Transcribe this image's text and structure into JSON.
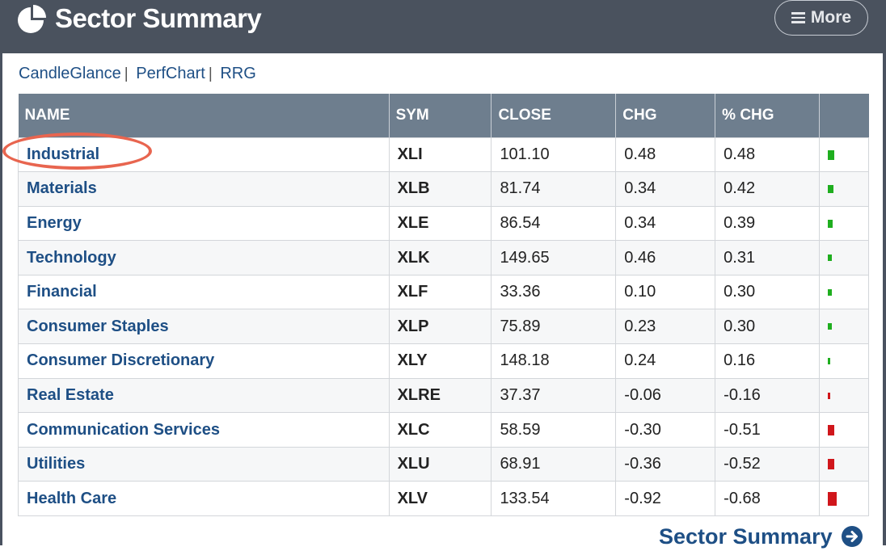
{
  "header": {
    "title": "Sector Summary",
    "more_label": "More"
  },
  "links": [
    "CandleGlance",
    "PerfChart",
    "RRG"
  ],
  "table": {
    "columns": [
      "NAME",
      "SYM",
      "CLOSE",
      "CHG",
      "% CHG",
      ""
    ],
    "rows": [
      {
        "name": "Industrial",
        "sym": "XLI",
        "close": "101.10",
        "chg": "0.48",
        "pct": "0.48",
        "pct_value": 0.48
      },
      {
        "name": "Materials",
        "sym": "XLB",
        "close": "81.74",
        "chg": "0.34",
        "pct": "0.42",
        "pct_value": 0.42
      },
      {
        "name": "Energy",
        "sym": "XLE",
        "close": "86.54",
        "chg": "0.34",
        "pct": "0.39",
        "pct_value": 0.39
      },
      {
        "name": "Technology",
        "sym": "XLK",
        "close": "149.65",
        "chg": "0.46",
        "pct": "0.31",
        "pct_value": 0.31
      },
      {
        "name": "Financial",
        "sym": "XLF",
        "close": "33.36",
        "chg": "0.10",
        "pct": "0.30",
        "pct_value": 0.3
      },
      {
        "name": "Consumer Staples",
        "sym": "XLP",
        "close": "75.89",
        "chg": "0.23",
        "pct": "0.30",
        "pct_value": 0.3
      },
      {
        "name": "Consumer Discretionary",
        "sym": "XLY",
        "close": "148.18",
        "chg": "0.24",
        "pct": "0.16",
        "pct_value": 0.16
      },
      {
        "name": "Real Estate",
        "sym": "XLRE",
        "close": "37.37",
        "chg": "-0.06",
        "pct": "-0.16",
        "pct_value": -0.16
      },
      {
        "name": "Communication Services",
        "sym": "XLC",
        "close": "58.59",
        "chg": "-0.30",
        "pct": "-0.51",
        "pct_value": -0.51
      },
      {
        "name": "Utilities",
        "sym": "XLU",
        "close": "68.91",
        "chg": "-0.36",
        "pct": "-0.52",
        "pct_value": -0.52
      },
      {
        "name": "Health Care",
        "sym": "XLV",
        "close": "133.54",
        "chg": "-0.92",
        "pct": "-0.68",
        "pct_value": -0.68
      }
    ]
  },
  "footer": {
    "link_label": "Sector Summary"
  },
  "colors": {
    "header_bg": "#4a525e",
    "table_header_bg": "#6e7e8e",
    "link": "#1e4f85",
    "positive": "#1fae1f",
    "negative": "#d0161b",
    "highlight": "#e8654f"
  },
  "icons": {
    "logo": "pie-chart-icon",
    "more": "menu-icon",
    "footer": "arrow-right-circle-icon"
  }
}
